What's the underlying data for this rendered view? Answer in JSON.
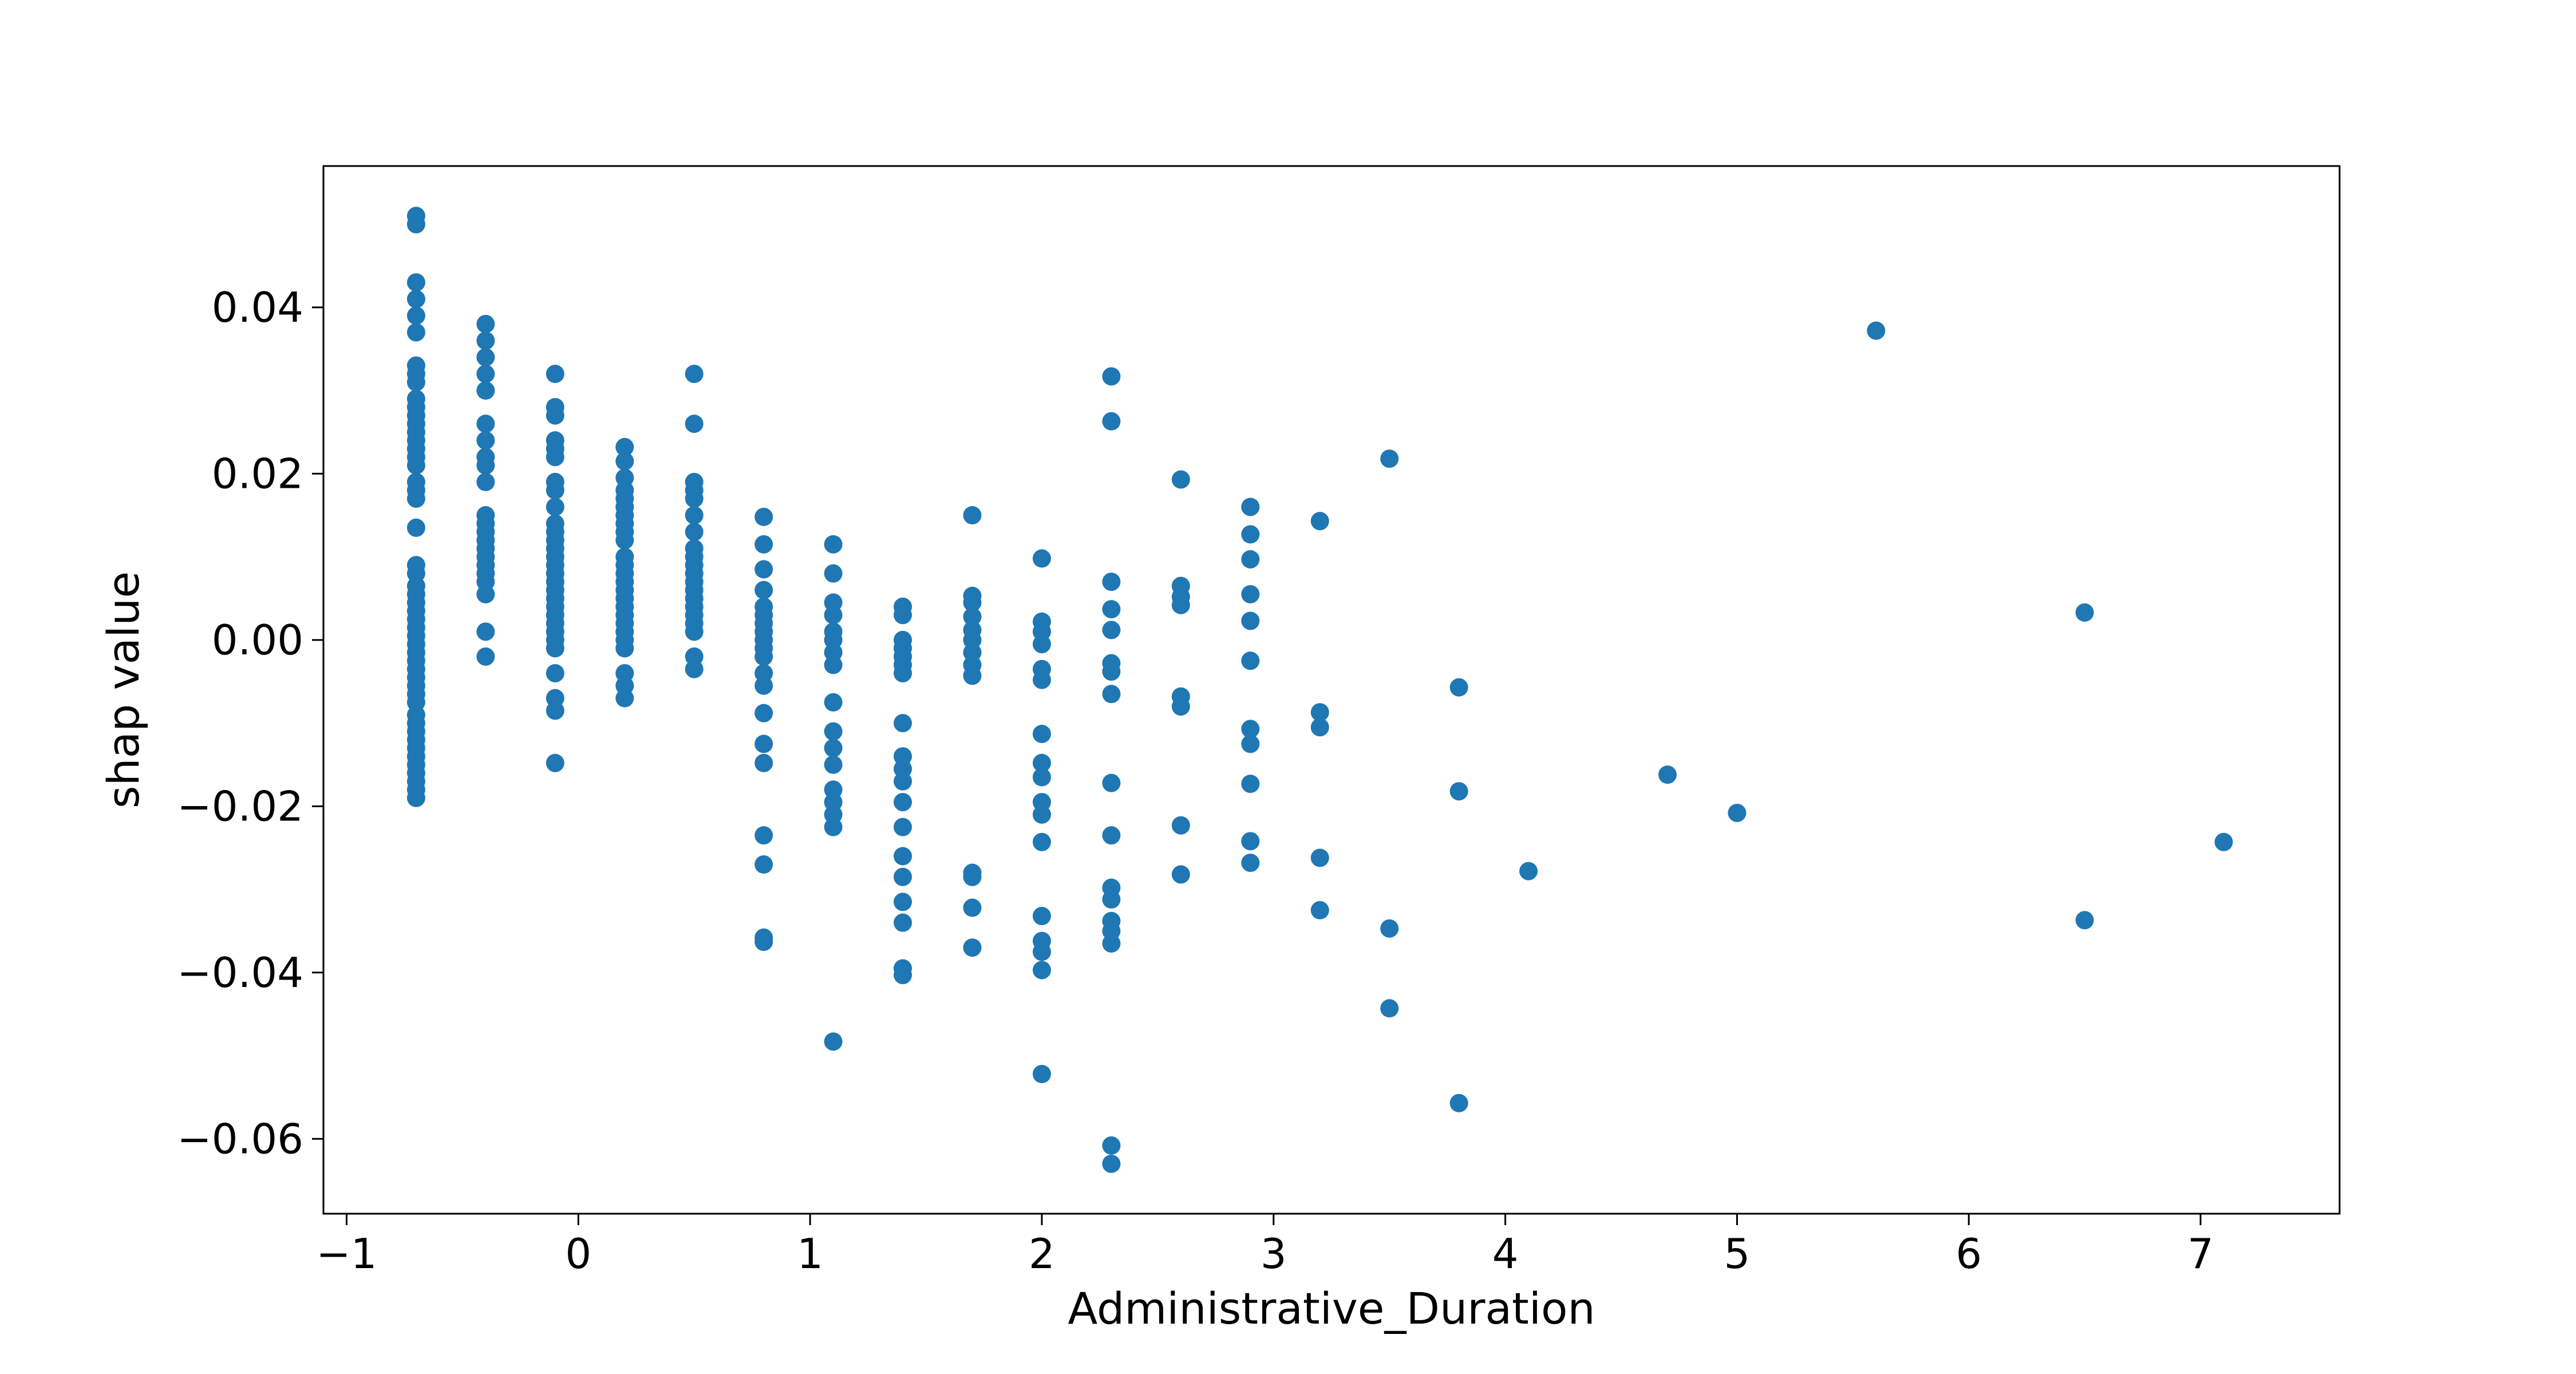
{
  "chart_data": {
    "type": "scatter",
    "title": "",
    "xlabel": "Administrative_Duration",
    "ylabel": "shap value",
    "xlim": [
      -1.1,
      7.6
    ],
    "ylim": [
      -0.069,
      0.057
    ],
    "xticks": [
      -1,
      0,
      1,
      2,
      3,
      4,
      5,
      6,
      7
    ],
    "yticks": [
      -0.06,
      -0.04,
      -0.02,
      0.0,
      0.02,
      0.04
    ],
    "xtick_labels": [
      "−1",
      "0",
      "1",
      "2",
      "3",
      "4",
      "5",
      "6",
      "7"
    ],
    "ytick_labels": [
      "−0.06",
      "−0.04",
      "−0.02",
      "0.00",
      "0.02",
      "0.04"
    ],
    "grid": false,
    "legend": "none",
    "marker_color": "#1f77b4",
    "series": [
      {
        "points": [
          [
            -0.7,
            0.051
          ],
          [
            -0.7,
            0.05
          ],
          [
            -0.7,
            0.043
          ],
          [
            -0.7,
            0.041
          ],
          [
            -0.7,
            0.039
          ],
          [
            -0.7,
            0.037
          ],
          [
            -0.7,
            0.033
          ],
          [
            -0.7,
            0.032
          ],
          [
            -0.7,
            0.031
          ],
          [
            -0.7,
            0.029
          ],
          [
            -0.7,
            0.028
          ],
          [
            -0.7,
            0.027
          ],
          [
            -0.7,
            0.026
          ],
          [
            -0.7,
            0.025
          ],
          [
            -0.7,
            0.024
          ],
          [
            -0.7,
            0.023
          ],
          [
            -0.7,
            0.022
          ],
          [
            -0.7,
            0.021
          ],
          [
            -0.7,
            0.019
          ],
          [
            -0.7,
            0.018
          ],
          [
            -0.7,
            0.017
          ],
          [
            -0.7,
            0.0135
          ],
          [
            -0.7,
            0.009
          ],
          [
            -0.7,
            0.008
          ],
          [
            -0.7,
            0.0065
          ],
          [
            -0.7,
            0.0055
          ],
          [
            -0.7,
            0.0045
          ],
          [
            -0.7,
            0.0035
          ],
          [
            -0.7,
            0.0025
          ],
          [
            -0.7,
            0.0015
          ],
          [
            -0.7,
            0.0005
          ],
          [
            -0.7,
            -0.0005
          ],
          [
            -0.7,
            -0.0015
          ],
          [
            -0.7,
            -0.0025
          ],
          [
            -0.7,
            -0.0035
          ],
          [
            -0.7,
            -0.0045
          ],
          [
            -0.7,
            -0.0055
          ],
          [
            -0.7,
            -0.0065
          ],
          [
            -0.7,
            -0.0075
          ],
          [
            -0.7,
            -0.009
          ],
          [
            -0.7,
            -0.01
          ],
          [
            -0.7,
            -0.011
          ],
          [
            -0.7,
            -0.012
          ],
          [
            -0.7,
            -0.013
          ],
          [
            -0.7,
            -0.014
          ],
          [
            -0.7,
            -0.015
          ],
          [
            -0.7,
            -0.016
          ],
          [
            -0.7,
            -0.017
          ],
          [
            -0.7,
            -0.018
          ],
          [
            -0.7,
            -0.019
          ],
          [
            -0.4,
            0.038
          ],
          [
            -0.4,
            0.036
          ],
          [
            -0.4,
            0.034
          ],
          [
            -0.4,
            0.032
          ],
          [
            -0.4,
            0.03
          ],
          [
            -0.4,
            0.026
          ],
          [
            -0.4,
            0.024
          ],
          [
            -0.4,
            0.022
          ],
          [
            -0.4,
            0.021
          ],
          [
            -0.4,
            0.019
          ],
          [
            -0.4,
            0.015
          ],
          [
            -0.4,
            0.014
          ],
          [
            -0.4,
            0.013
          ],
          [
            -0.4,
            0.012
          ],
          [
            -0.4,
            0.011
          ],
          [
            -0.4,
            0.01
          ],
          [
            -0.4,
            0.009
          ],
          [
            -0.4,
            0.008
          ],
          [
            -0.4,
            0.007
          ],
          [
            -0.4,
            0.0055
          ],
          [
            -0.4,
            0.001
          ],
          [
            -0.4,
            -0.002
          ],
          [
            -0.1,
            0.032
          ],
          [
            -0.1,
            0.028
          ],
          [
            -0.1,
            0.027
          ],
          [
            -0.1,
            0.024
          ],
          [
            -0.1,
            0.023
          ],
          [
            -0.1,
            0.022
          ],
          [
            -0.1,
            0.019
          ],
          [
            -0.1,
            0.018
          ],
          [
            -0.1,
            0.016
          ],
          [
            -0.1,
            0.014
          ],
          [
            -0.1,
            0.013
          ],
          [
            -0.1,
            0.012
          ],
          [
            -0.1,
            0.011
          ],
          [
            -0.1,
            0.01
          ],
          [
            -0.1,
            0.009
          ],
          [
            -0.1,
            0.008
          ],
          [
            -0.1,
            0.007
          ],
          [
            -0.1,
            0.006
          ],
          [
            -0.1,
            0.005
          ],
          [
            -0.1,
            0.004
          ],
          [
            -0.1,
            0.003
          ],
          [
            -0.1,
            0.002
          ],
          [
            -0.1,
            0.001
          ],
          [
            -0.1,
            0.0
          ],
          [
            -0.1,
            -0.001
          ],
          [
            -0.1,
            -0.004
          ],
          [
            -0.1,
            -0.007
          ],
          [
            -0.1,
            -0.0085
          ],
          [
            -0.1,
            -0.0148
          ],
          [
            0.2,
            0.0232
          ],
          [
            0.2,
            0.0215
          ],
          [
            0.2,
            0.0195
          ],
          [
            0.2,
            0.018
          ],
          [
            0.2,
            0.017
          ],
          [
            0.2,
            0.016
          ],
          [
            0.2,
            0.015
          ],
          [
            0.2,
            0.014
          ],
          [
            0.2,
            0.013
          ],
          [
            0.2,
            0.012
          ],
          [
            0.2,
            0.01
          ],
          [
            0.2,
            0.009
          ],
          [
            0.2,
            0.008
          ],
          [
            0.2,
            0.007
          ],
          [
            0.2,
            0.006
          ],
          [
            0.2,
            0.005
          ],
          [
            0.2,
            0.004
          ],
          [
            0.2,
            0.003
          ],
          [
            0.2,
            0.002
          ],
          [
            0.2,
            0.001
          ],
          [
            0.2,
            0.0
          ],
          [
            0.2,
            -0.001
          ],
          [
            0.2,
            -0.004
          ],
          [
            0.2,
            -0.0055
          ],
          [
            0.2,
            -0.007
          ],
          [
            0.5,
            0.032
          ],
          [
            0.5,
            0.026
          ],
          [
            0.5,
            0.019
          ],
          [
            0.5,
            0.018
          ],
          [
            0.5,
            0.017
          ],
          [
            0.5,
            0.015
          ],
          [
            0.5,
            0.013
          ],
          [
            0.5,
            0.011
          ],
          [
            0.5,
            0.01
          ],
          [
            0.5,
            0.009
          ],
          [
            0.5,
            0.008
          ],
          [
            0.5,
            0.007
          ],
          [
            0.5,
            0.006
          ],
          [
            0.5,
            0.005
          ],
          [
            0.5,
            0.004
          ],
          [
            0.5,
            0.003
          ],
          [
            0.5,
            0.002
          ],
          [
            0.5,
            0.001
          ],
          [
            0.5,
            -0.002
          ],
          [
            0.5,
            -0.0035
          ],
          [
            0.8,
            0.0148
          ],
          [
            0.8,
            0.0115
          ],
          [
            0.8,
            0.0085
          ],
          [
            0.8,
            0.006
          ],
          [
            0.8,
            0.004
          ],
          [
            0.8,
            0.003
          ],
          [
            0.8,
            0.002
          ],
          [
            0.8,
            0.001
          ],
          [
            0.8,
            0.0
          ],
          [
            0.8,
            -0.001
          ],
          [
            0.8,
            -0.002
          ],
          [
            0.8,
            -0.004
          ],
          [
            0.8,
            -0.0055
          ],
          [
            0.8,
            -0.0088
          ],
          [
            0.8,
            -0.0125
          ],
          [
            0.8,
            -0.0148
          ],
          [
            0.8,
            -0.0235
          ],
          [
            0.8,
            -0.027
          ],
          [
            0.8,
            -0.0358
          ],
          [
            0.8,
            -0.0363
          ],
          [
            1.1,
            0.0115
          ],
          [
            1.1,
            0.008
          ],
          [
            1.1,
            0.0045
          ],
          [
            1.1,
            0.003
          ],
          [
            1.1,
            0.001
          ],
          [
            1.1,
            0.0
          ],
          [
            1.1,
            -0.0015
          ],
          [
            1.1,
            -0.003
          ],
          [
            1.1,
            -0.0075
          ],
          [
            1.1,
            -0.011
          ],
          [
            1.1,
            -0.013
          ],
          [
            1.1,
            -0.015
          ],
          [
            1.1,
            -0.018
          ],
          [
            1.1,
            -0.0195
          ],
          [
            1.1,
            -0.021
          ],
          [
            1.1,
            -0.0225
          ],
          [
            1.1,
            -0.0483
          ],
          [
            1.4,
            0.004
          ],
          [
            1.4,
            0.003
          ],
          [
            1.4,
            0.0
          ],
          [
            1.4,
            -0.001
          ],
          [
            1.4,
            -0.002
          ],
          [
            1.4,
            -0.003
          ],
          [
            1.4,
            -0.004
          ],
          [
            1.4,
            -0.01
          ],
          [
            1.4,
            -0.014
          ],
          [
            1.4,
            -0.0155
          ],
          [
            1.4,
            -0.017
          ],
          [
            1.4,
            -0.0195
          ],
          [
            1.4,
            -0.0225
          ],
          [
            1.4,
            -0.026
          ],
          [
            1.4,
            -0.0285
          ],
          [
            1.4,
            -0.0315
          ],
          [
            1.4,
            -0.034
          ],
          [
            1.4,
            -0.0395
          ],
          [
            1.4,
            -0.0403
          ],
          [
            1.7,
            0.015
          ],
          [
            1.7,
            0.0053
          ],
          [
            1.7,
            0.0045
          ],
          [
            1.7,
            0.0028
          ],
          [
            1.7,
            0.0012
          ],
          [
            1.7,
            0.0
          ],
          [
            1.7,
            -0.0015
          ],
          [
            1.7,
            -0.003
          ],
          [
            1.7,
            -0.0043
          ],
          [
            1.7,
            -0.028
          ],
          [
            1.7,
            -0.0285
          ],
          [
            1.7,
            -0.0322
          ],
          [
            1.7,
            -0.037
          ],
          [
            2.0,
            0.0098
          ],
          [
            2.0,
            0.0022
          ],
          [
            2.0,
            0.001
          ],
          [
            2.0,
            -0.0005
          ],
          [
            2.0,
            -0.0035
          ],
          [
            2.0,
            -0.0048
          ],
          [
            2.0,
            -0.0113
          ],
          [
            2.0,
            -0.0148
          ],
          [
            2.0,
            -0.0165
          ],
          [
            2.0,
            -0.0195
          ],
          [
            2.0,
            -0.021
          ],
          [
            2.0,
            -0.0243
          ],
          [
            2.0,
            -0.0332
          ],
          [
            2.0,
            -0.0362
          ],
          [
            2.0,
            -0.0375
          ],
          [
            2.0,
            -0.0397
          ],
          [
            2.0,
            -0.0522
          ],
          [
            2.3,
            0.0317
          ],
          [
            2.3,
            0.0263
          ],
          [
            2.3,
            0.007
          ],
          [
            2.3,
            0.0037
          ],
          [
            2.3,
            0.0012
          ],
          [
            2.3,
            -0.0028
          ],
          [
            2.3,
            -0.0038
          ],
          [
            2.3,
            -0.0065
          ],
          [
            2.3,
            -0.0172
          ],
          [
            2.3,
            -0.0235
          ],
          [
            2.3,
            -0.0298
          ],
          [
            2.3,
            -0.0312
          ],
          [
            2.3,
            -0.0338
          ],
          [
            2.3,
            -0.035
          ],
          [
            2.3,
            -0.0365
          ],
          [
            2.3,
            -0.0608
          ],
          [
            2.3,
            -0.063
          ],
          [
            2.6,
            0.0193
          ],
          [
            2.6,
            0.0065
          ],
          [
            2.6,
            0.0052
          ],
          [
            2.6,
            0.0042
          ],
          [
            2.6,
            -0.0068
          ],
          [
            2.6,
            -0.008
          ],
          [
            2.6,
            -0.0223
          ],
          [
            2.6,
            -0.0282
          ],
          [
            2.9,
            0.016
          ],
          [
            2.9,
            0.0127
          ],
          [
            2.9,
            0.0097
          ],
          [
            2.9,
            0.0055
          ],
          [
            2.9,
            0.0023
          ],
          [
            2.9,
            -0.0025
          ],
          [
            2.9,
            -0.0107
          ],
          [
            2.9,
            -0.0125
          ],
          [
            2.9,
            -0.0173
          ],
          [
            2.9,
            -0.0242
          ],
          [
            2.9,
            -0.0268
          ],
          [
            3.2,
            0.0143
          ],
          [
            3.2,
            -0.0087
          ],
          [
            3.2,
            -0.0105
          ],
          [
            3.2,
            -0.0262
          ],
          [
            3.2,
            -0.0325
          ],
          [
            3.5,
            0.0218
          ],
          [
            3.5,
            -0.0347
          ],
          [
            3.5,
            -0.0443
          ],
          [
            3.8,
            -0.0057
          ],
          [
            3.8,
            -0.0182
          ],
          [
            3.8,
            -0.0557
          ],
          [
            4.1,
            -0.0278
          ],
          [
            4.7,
            -0.0162
          ],
          [
            5.0,
            -0.0208
          ],
          [
            5.6,
            0.0372
          ],
          [
            6.5,
            0.0033
          ],
          [
            6.5,
            -0.0337
          ],
          [
            7.1,
            -0.0243
          ]
        ]
      }
    ]
  }
}
